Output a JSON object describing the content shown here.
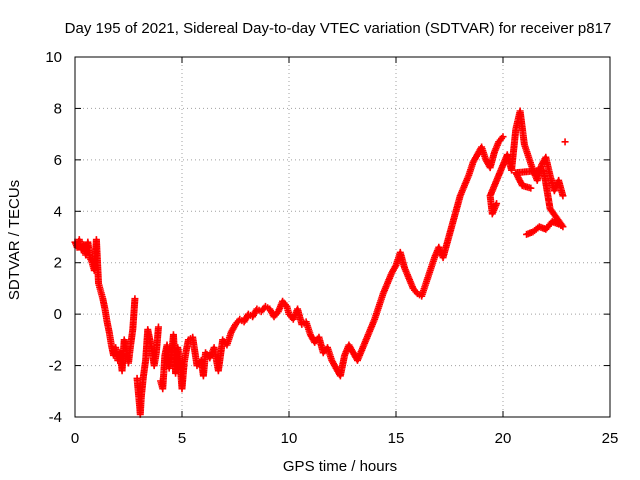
{
  "chart_data": {
    "type": "scatter",
    "title": "Day 195 of 2021, Sidereal Day-to-day VTEC variation (SDTVAR) for receiver p817",
    "xlabel": "GPS time / hours",
    "ylabel": "SDTVAR / TECUs",
    "xlim": [
      0,
      25
    ],
    "ylim": [
      -4,
      10
    ],
    "xticks": [
      0,
      5,
      10,
      15,
      20,
      25
    ],
    "yticks": [
      -4,
      -2,
      0,
      2,
      4,
      6,
      8,
      10
    ],
    "grid": true,
    "marker": "+",
    "series_color": "#ff0000",
    "series": [
      {
        "points": [
          [
            0.0,
            2.8
          ],
          [
            0.1,
            2.6
          ],
          [
            0.2,
            2.9
          ],
          [
            0.3,
            2.5
          ],
          [
            0.4,
            2.7
          ],
          [
            0.5,
            2.3
          ],
          [
            0.6,
            2.8
          ],
          [
            0.7,
            2.2
          ],
          [
            0.8,
            2.0
          ],
          [
            0.9,
            1.7
          ],
          [
            1.0,
            2.9
          ],
          [
            1.1,
            1.2
          ],
          [
            1.2,
            0.9
          ],
          [
            1.3,
            0.6
          ],
          [
            1.4,
            0.2
          ],
          [
            1.5,
            -0.3
          ],
          [
            1.6,
            -0.7
          ],
          [
            1.7,
            -1.2
          ],
          [
            1.8,
            -1.6
          ],
          [
            1.9,
            -1.3
          ],
          [
            2.0,
            -1.8
          ],
          [
            2.1,
            -1.5
          ],
          [
            2.2,
            -2.2
          ],
          [
            2.3,
            -1.0
          ],
          [
            2.4,
            -1.4
          ],
          [
            2.5,
            -1.9
          ],
          [
            2.6,
            -1.2
          ],
          [
            2.7,
            -0.6
          ],
          [
            2.8,
            0.6
          ],
          [
            2.9,
            -2.5
          ],
          [
            3.0,
            -3.4
          ],
          [
            3.05,
            -3.9
          ],
          [
            3.1,
            -3.2
          ],
          [
            3.2,
            -2.4
          ],
          [
            3.3,
            -1.8
          ],
          [
            3.4,
            -0.6
          ],
          [
            3.5,
            -1.0
          ],
          [
            3.6,
            -1.4
          ],
          [
            3.7,
            -2.0
          ],
          [
            3.8,
            -1.5
          ],
          [
            3.9,
            -0.5
          ],
          [
            4.0,
            -2.6
          ],
          [
            4.1,
            -2.9
          ],
          [
            4.2,
            -1.6
          ],
          [
            4.3,
            -1.2
          ],
          [
            4.4,
            -2.1
          ],
          [
            4.5,
            -1.7
          ],
          [
            4.6,
            -0.8
          ],
          [
            4.7,
            -2.3
          ],
          [
            4.8,
            -1.3
          ],
          [
            4.9,
            -1.8
          ],
          [
            5.0,
            -2.9
          ],
          [
            5.1,
            -1.9
          ],
          [
            5.2,
            -1.4
          ],
          [
            5.3,
            -1.0
          ],
          [
            5.5,
            -0.9
          ],
          [
            5.7,
            -2.0
          ],
          [
            5.9,
            -1.8
          ],
          [
            6.0,
            -2.4
          ],
          [
            6.1,
            -1.5
          ],
          [
            6.3,
            -1.7
          ],
          [
            6.5,
            -1.3
          ],
          [
            6.7,
            -2.2
          ],
          [
            6.9,
            -1.0
          ],
          [
            7.1,
            -1.2
          ],
          [
            7.3,
            -0.7
          ],
          [
            7.5,
            -0.4
          ],
          [
            7.7,
            -0.2
          ],
          [
            7.9,
            -0.3
          ],
          [
            8.1,
            0.0
          ],
          [
            8.3,
            -0.1
          ],
          [
            8.5,
            0.2
          ],
          [
            8.7,
            0.1
          ],
          [
            8.9,
            0.3
          ],
          [
            9.1,
            0.2
          ],
          [
            9.3,
            -0.1
          ],
          [
            9.5,
            0.1
          ],
          [
            9.7,
            0.5
          ],
          [
            9.9,
            0.3
          ],
          [
            10.0,
            0.0
          ],
          [
            10.2,
            -0.2
          ],
          [
            10.4,
            0.2
          ],
          [
            10.6,
            -0.4
          ],
          [
            10.8,
            -0.3
          ],
          [
            11.0,
            -0.8
          ],
          [
            11.2,
            -1.1
          ],
          [
            11.4,
            -0.9
          ],
          [
            11.6,
            -1.5
          ],
          [
            11.8,
            -1.3
          ],
          [
            12.0,
            -1.8
          ],
          [
            12.2,
            -2.1
          ],
          [
            12.4,
            -2.4
          ],
          [
            12.6,
            -1.6
          ],
          [
            12.8,
            -1.2
          ],
          [
            13.0,
            -1.5
          ],
          [
            13.2,
            -1.8
          ],
          [
            13.4,
            -1.4
          ],
          [
            13.6,
            -1.0
          ],
          [
            13.8,
            -0.6
          ],
          [
            14.0,
            -0.2
          ],
          [
            14.2,
            0.3
          ],
          [
            14.4,
            0.8
          ],
          [
            14.6,
            1.2
          ],
          [
            14.8,
            1.6
          ],
          [
            15.0,
            1.9
          ],
          [
            15.2,
            2.4
          ],
          [
            15.4,
            1.8
          ],
          [
            15.6,
            1.4
          ],
          [
            15.8,
            1.0
          ],
          [
            16.0,
            0.8
          ],
          [
            16.2,
            0.7
          ],
          [
            16.4,
            1.2
          ],
          [
            16.6,
            1.7
          ],
          [
            16.8,
            2.2
          ],
          [
            17.0,
            2.6
          ],
          [
            17.2,
            2.2
          ],
          [
            17.4,
            2.8
          ],
          [
            17.6,
            3.4
          ],
          [
            17.8,
            4.0
          ],
          [
            18.0,
            4.6
          ],
          [
            18.2,
            5.0
          ],
          [
            18.4,
            5.4
          ],
          [
            18.6,
            5.9
          ],
          [
            18.8,
            6.2
          ],
          [
            19.0,
            6.5
          ],
          [
            19.2,
            6.0
          ],
          [
            19.4,
            5.7
          ],
          [
            19.6,
            6.3
          ],
          [
            19.8,
            6.7
          ],
          [
            20.0,
            6.9
          ],
          [
            19.7,
            4.3
          ],
          [
            19.5,
            3.9
          ],
          [
            19.4,
            4.6
          ],
          [
            20.2,
            6.2
          ],
          [
            20.4,
            5.6
          ],
          [
            20.6,
            7.2
          ],
          [
            20.8,
            7.9
          ],
          [
            21.0,
            6.6
          ],
          [
            21.2,
            6.1
          ],
          [
            21.4,
            5.6
          ],
          [
            21.6,
            5.2
          ],
          [
            21.8,
            5.8
          ],
          [
            22.0,
            6.1
          ],
          [
            22.2,
            5.4
          ],
          [
            22.4,
            4.8
          ],
          [
            22.6,
            5.2
          ],
          [
            22.8,
            4.6
          ],
          [
            22.9,
            6.7
          ],
          [
            21.1,
            3.1
          ],
          [
            21.4,
            3.2
          ],
          [
            21.7,
            3.4
          ],
          [
            22.0,
            3.3
          ],
          [
            22.3,
            3.6
          ],
          [
            22.6,
            3.5
          ],
          [
            22.8,
            3.4
          ],
          [
            22.2,
            4.1
          ],
          [
            21.9,
            5.6
          ],
          [
            20.6,
            5.5
          ],
          [
            20.9,
            5.0
          ],
          [
            21.3,
            4.9
          ]
        ]
      }
    ]
  }
}
